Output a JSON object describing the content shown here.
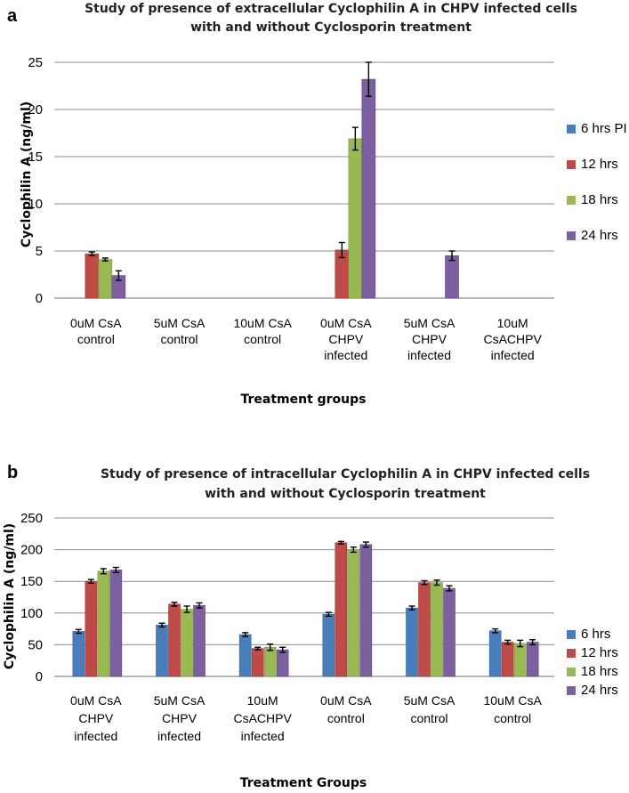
{
  "colors": {
    "s1": "#4a7ebb",
    "s2": "#be4b48",
    "s3": "#98b954",
    "s4": "#7d60a0"
  },
  "chart_data": [
    {
      "panel": "a",
      "type": "bar",
      "title_lines": [
        "Study of presence of extracellular Cyclophilin A in CHPV infected cells",
        "with and without Cyclosporin treatment"
      ],
      "xlabel": "Treatment groups",
      "ylabel": "Cyclophilin A (ng/ml)",
      "ylim": [
        0,
        25
      ],
      "yticks": [
        0,
        5,
        10,
        15,
        20,
        25
      ],
      "grid": true,
      "legend_position": "right",
      "categories": [
        [
          "0uM CsA",
          "control"
        ],
        [
          "5uM CsA",
          "control"
        ],
        [
          "10uM CsA",
          "control"
        ],
        [
          "0uM CsA",
          "CHPV",
          "infected"
        ],
        [
          "5uM CsA",
          "CHPV",
          "infected"
        ],
        [
          "10uM",
          "CsACHPV",
          "infected"
        ]
      ],
      "series": [
        {
          "name": "6 hrs PI",
          "values": [
            0,
            0,
            0,
            0,
            0,
            0
          ],
          "errors": [
            0,
            0,
            0,
            0,
            0,
            0
          ]
        },
        {
          "name": "12 hrs",
          "values": [
            4.7,
            0,
            0,
            5.1,
            0,
            0
          ],
          "errors": [
            0.2,
            0,
            0,
            0.8,
            0,
            0
          ]
        },
        {
          "name": "18 hrs",
          "values": [
            4.1,
            0,
            0,
            16.9,
            0,
            0
          ],
          "errors": [
            0.15,
            0,
            0,
            1.2,
            0,
            0
          ]
        },
        {
          "name": "24 hrs",
          "values": [
            2.4,
            0,
            0,
            23.2,
            4.5,
            0
          ],
          "errors": [
            0.5,
            0,
            0,
            1.8,
            0.5,
            0
          ]
        }
      ]
    },
    {
      "panel": "b",
      "type": "bar",
      "title_lines": [
        "Study of presence of intracellular Cyclophilin A in CHPV infected cells",
        "with and without Cyclosporin treatment"
      ],
      "xlabel": "Treatment Groups",
      "ylabel": "Cyclophilin A (ng/ml)",
      "ylim": [
        0,
        250
      ],
      "yticks": [
        0,
        50,
        100,
        150,
        200,
        250
      ],
      "grid": true,
      "legend_position": "right",
      "categories": [
        [
          "0uM CsA",
          "CHPV",
          "infected"
        ],
        [
          "5uM CsA",
          "CHPV",
          "infected"
        ],
        [
          "10uM",
          "CsACHPV",
          "infected"
        ],
        [
          "0uM CsA",
          "control"
        ],
        [
          "5uM CsA",
          "control"
        ],
        [
          "10uM CsA",
          "control"
        ]
      ],
      "series": [
        {
          "name": "6 hrs",
          "values": [
            71,
            81,
            66,
            98,
            108,
            72
          ],
          "errors": [
            3,
            3,
            3,
            3,
            3,
            3
          ]
        },
        {
          "name": "12 hrs",
          "values": [
            150,
            114,
            44,
            211,
            148,
            54
          ],
          "errors": [
            3,
            3,
            2,
            2,
            3,
            3
          ]
        },
        {
          "name": "18 hrs",
          "values": [
            166,
            106,
            46,
            200,
            148,
            52
          ],
          "errors": [
            4,
            5,
            5,
            4,
            4,
            5
          ]
        },
        {
          "name": "24 hrs",
          "values": [
            168,
            112,
            42,
            208,
            139,
            54
          ],
          "errors": [
            4,
            4,
            4,
            4,
            4,
            4
          ]
        }
      ]
    }
  ]
}
